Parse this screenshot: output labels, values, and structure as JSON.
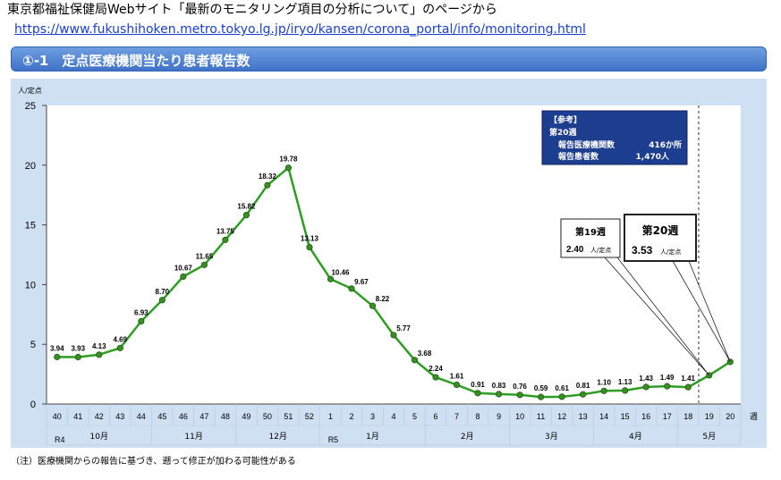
{
  "header": {
    "source_text": "東京都福祉保健局Webサイト「最新のモニタリング項目の分析について」のページから",
    "source_url": "https://www.fukushihoken.metro.tokyo.lg.jp/iryo/kansen/corona_portal/info/monitoring.html"
  },
  "section": {
    "title": "①-1　定点医療機関当たり患者報告数"
  },
  "chart_data": {
    "type": "line",
    "ylabel": "人/定点",
    "xlabel": "週",
    "ylim": [
      0,
      25
    ],
    "yticks": [
      0,
      5,
      10,
      15,
      20,
      25
    ],
    "grid": false,
    "x": [
      "40",
      "41",
      "42",
      "43",
      "44",
      "45",
      "46",
      "47",
      "48",
      "49",
      "50",
      "51",
      "52",
      "1",
      "2",
      "3",
      "4",
      "5",
      "6",
      "7",
      "8",
      "9",
      "10",
      "11",
      "12",
      "13",
      "14",
      "15",
      "16",
      "17",
      "18",
      "19",
      "20"
    ],
    "values": [
      3.94,
      3.93,
      4.13,
      4.69,
      6.93,
      8.7,
      10.67,
      11.65,
      13.75,
      15.82,
      18.32,
      19.78,
      13.13,
      10.46,
      9.67,
      8.22,
      5.77,
      3.68,
      2.24,
      1.61,
      0.91,
      0.83,
      0.76,
      0.59,
      0.61,
      0.81,
      1.1,
      1.13,
      1.43,
      1.49,
      1.41,
      2.4,
      3.53
    ],
    "value_labels": [
      "3.94",
      "3.93",
      "4.13",
      "4.69",
      "6.93",
      "8.70",
      "10.67",
      "11.65",
      "13.75",
      "15.82",
      "18.32",
      "19.78",
      "13.13",
      "10.46",
      "9.67",
      "8.22",
      "5.77",
      "3.68",
      "2.24",
      "1.61",
      "0.91",
      "0.83",
      "0.76",
      "0.59",
      "0.61",
      "0.81",
      "1.10",
      "1.13",
      "1.43",
      "1.49",
      "1.41",
      "",
      ""
    ],
    "years": [
      {
        "label": "R4",
        "start": 0,
        "end": 12
      },
      {
        "label": "R5",
        "start": 13,
        "end": 32
      }
    ],
    "months": [
      {
        "label": "10月",
        "start": 0,
        "end": 4
      },
      {
        "label": "11月",
        "start": 5,
        "end": 8
      },
      {
        "label": "12月",
        "start": 9,
        "end": 12
      },
      {
        "label": "1月",
        "start": 13,
        "end": 17
      },
      {
        "label": "2月",
        "start": 18,
        "end": 21
      },
      {
        "label": "3月",
        "start": 22,
        "end": 25
      },
      {
        "label": "4月",
        "start": 26,
        "end": 29
      },
      {
        "label": "5月",
        "start": 30,
        "end": 32
      }
    ],
    "line_color": "#2e9e22",
    "marker_color": "#3b8d26",
    "vline_after_index": 30,
    "reference_box": {
      "line1": "【参考】",
      "line2": "第20週",
      "row1_label": "報告医療機関数",
      "row1_value": "416か所",
      "row2_label": "報告患者数",
      "row2_value": "1,470人"
    },
    "callouts": [
      {
        "week": "第19週",
        "value": "2.40",
        "unit": "人/定点",
        "index": 31
      },
      {
        "week": "第20週",
        "value": "3.53",
        "unit": "人/定点",
        "index": 32
      }
    ]
  },
  "footnote": "（注）医療機関からの報告に基づき、遡って修正が加わる可能性がある"
}
